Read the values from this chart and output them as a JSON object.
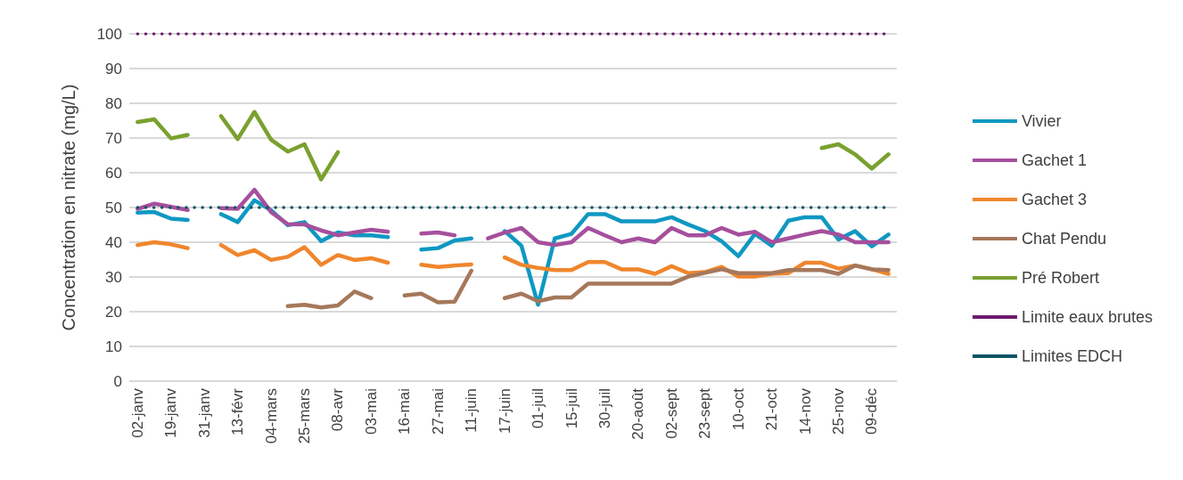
{
  "chart_data": {
    "type": "line",
    "ylabel": "Concentration en nitrate (mg/L)",
    "categories": [
      "02-janv",
      null,
      "19-janv",
      null,
      "31-janv",
      null,
      "13-févr",
      null,
      "04-mars",
      null,
      "25-mars",
      null,
      "08-avr",
      null,
      "03-mai",
      null,
      "16-mai",
      null,
      "27-mai",
      null,
      "11-juin",
      null,
      "17-juin",
      null,
      "01-juil",
      null,
      "15-juil",
      null,
      "30-juil",
      null,
      "20-août",
      null,
      "02-sept",
      null,
      "23-sept",
      null,
      "10-oct",
      null,
      "21-oct",
      null,
      "14-nov",
      null,
      "25-nov",
      null,
      "09-déc",
      null
    ],
    "ylim": [
      0,
      100
    ],
    "yticks": [
      0,
      10,
      20,
      30,
      40,
      50,
      60,
      70,
      80,
      90,
      100
    ],
    "grid": "y",
    "legend": "right",
    "marker": "none",
    "line_style": "solid",
    "series": [
      {
        "name": "Vivier",
        "color": "#0f98c2",
        "values": [
          48.5,
          48.7,
          46.8,
          46.4,
          null,
          48.1,
          45.8,
          52.1,
          49.2,
          44.9,
          45.8,
          40.3,
          42.8,
          42,
          42,
          41.5,
          null,
          37.9,
          38.3,
          40.5,
          41.1,
          null,
          43.2,
          39,
          22,
          41.1,
          42.4,
          48.1,
          48.1,
          46,
          46,
          46,
          47.2,
          45.1,
          43.2,
          40.3,
          36,
          42.4,
          39,
          46.2,
          47.2,
          47.2,
          40.8,
          43.2,
          38.8,
          42.2
        ]
      },
      {
        "name": "Gachet 1",
        "color": "#a64f9d",
        "values": [
          49.6,
          51.1,
          50.2,
          49.3,
          null,
          49.8,
          49.6,
          55.1,
          48.7,
          45.2,
          45.1,
          43.4,
          42,
          42.8,
          43.6,
          43,
          null,
          42.5,
          42.8,
          42,
          null,
          41.1,
          42.8,
          44.1,
          40,
          39.2,
          40,
          44.1,
          42,
          40,
          41.1,
          40,
          44.1,
          42,
          42,
          44.1,
          42.2,
          43,
          40,
          41.1,
          42.2,
          43.2,
          42.2,
          40,
          40,
          40
        ]
      },
      {
        "name": "Gachet 3",
        "color": "#f0862d",
        "values": [
          39.2,
          40,
          39.4,
          38.3,
          null,
          39.2,
          36.3,
          37.7,
          34.9,
          35.8,
          38.6,
          33.5,
          36.3,
          34.9,
          35.4,
          34.1,
          null,
          33.5,
          32.9,
          33.3,
          33.6,
          null,
          35.6,
          33.5,
          32.6,
          32,
          32,
          34.3,
          34.3,
          32.2,
          32.2,
          30.9,
          33.1,
          31.1,
          31.4,
          32.9,
          30.1,
          30.1,
          30.9,
          31.1,
          34.1,
          34.1,
          32.4,
          33.3,
          32.2,
          30.9
        ]
      },
      {
        "name": "Chat Pendu",
        "color": "#a5785b",
        "values": [
          null,
          null,
          null,
          null,
          null,
          null,
          null,
          null,
          null,
          21.6,
          22,
          21.2,
          21.8,
          25.8,
          23.9,
          null,
          24.7,
          25.2,
          22.7,
          22.9,
          31.8,
          null,
          23.9,
          25.2,
          23,
          24.1,
          24.1,
          28.1,
          28.1,
          28.1,
          28.1,
          28.1,
          28.1,
          30.1,
          31.2,
          32.2,
          31.1,
          31.1,
          31.1,
          32,
          32,
          32,
          30.9,
          33.3,
          32.2,
          32
        ]
      },
      {
        "name": "Pré Robert",
        "color": "#7aa12f",
        "values": [
          74.6,
          75.4,
          69.9,
          70.9,
          null,
          76.3,
          69.7,
          77.5,
          69.5,
          66.1,
          68.2,
          58.1,
          65.9,
          null,
          null,
          null,
          null,
          null,
          null,
          null,
          null,
          null,
          null,
          null,
          null,
          null,
          null,
          null,
          null,
          null,
          null,
          null,
          null,
          null,
          null,
          null,
          null,
          null,
          null,
          null,
          null,
          67.1,
          68.2,
          65.3,
          61.2,
          65.3
        ]
      },
      {
        "name": "Limite eaux brutes",
        "color": "#6e1a6e",
        "line_style": "dotted",
        "values": [
          100,
          100,
          100,
          100,
          100,
          100,
          100,
          100,
          100,
          100,
          100,
          100,
          100,
          100,
          100,
          100,
          100,
          100,
          100,
          100,
          100,
          100,
          100,
          100,
          100,
          100,
          100,
          100,
          100,
          100,
          100,
          100,
          100,
          100,
          100,
          100,
          100,
          100,
          100,
          100,
          100,
          100,
          100,
          100,
          100,
          100
        ]
      },
      {
        "name": "Limites EDCH",
        "color": "#0b5566",
        "line_style": "dotted",
        "values": [
          50,
          50,
          50,
          50,
          50,
          50,
          50,
          50,
          50,
          50,
          50,
          50,
          50,
          50,
          50,
          50,
          50,
          50,
          50,
          50,
          50,
          50,
          50,
          50,
          50,
          50,
          50,
          50,
          50,
          50,
          50,
          50,
          50,
          50,
          50,
          50,
          50,
          50,
          50,
          50,
          50,
          50,
          50,
          50,
          50,
          50
        ]
      }
    ]
  }
}
